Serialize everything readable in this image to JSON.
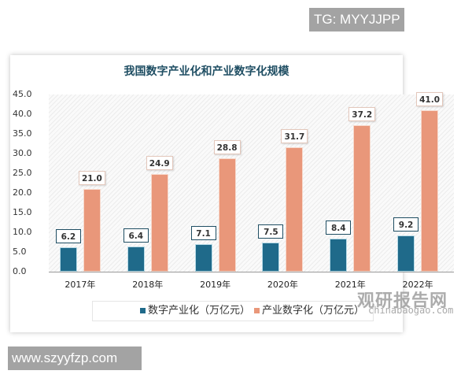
{
  "overlay": {
    "top_badge": "TG: MYYJJPP",
    "bottom_badge": "www.szyyfzp.com"
  },
  "watermark": {
    "cn": "观研报告网",
    "en": "chinabaogao.com"
  },
  "colors": {
    "series1": "#1f6a8a",
    "series2": "#e9977a",
    "title": "#1f4e63"
  },
  "chart_data": {
    "type": "bar",
    "title": "我国数字产业化和产业数字化规模",
    "xlabel": "",
    "ylabel": "",
    "ylim": [
      0,
      45
    ],
    "yticks": [
      "0.0",
      "5.0",
      "10.0",
      "15.0",
      "20.0",
      "25.0",
      "30.0",
      "35.0",
      "40.0",
      "45.0"
    ],
    "categories": [
      "2017年",
      "2018年",
      "2019年",
      "2020年",
      "2021年",
      "2022年"
    ],
    "series": [
      {
        "name": "数字产业化（万亿元）",
        "values": [
          6.2,
          6.4,
          7.1,
          7.5,
          8.4,
          9.2
        ],
        "labels": [
          "6.2",
          "6.4",
          "7.1",
          "7.5",
          "8.4",
          "9.2"
        ]
      },
      {
        "name": "产业数字化（万亿元）",
        "values": [
          21.0,
          24.9,
          28.8,
          31.7,
          37.2,
          41.0
        ],
        "labels": [
          "21.0",
          "24.9",
          "28.8",
          "31.7",
          "37.2",
          "41.0"
        ]
      }
    ],
    "grid": false,
    "legend_position": "bottom"
  }
}
